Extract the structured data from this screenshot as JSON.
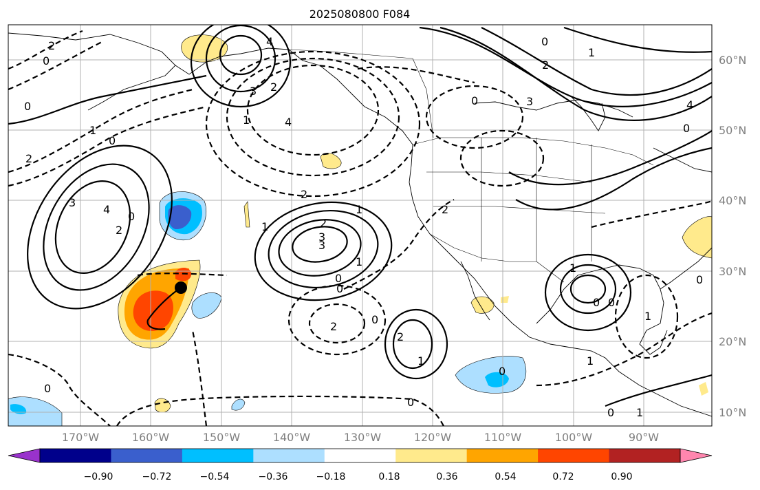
{
  "title": "2025080800 F084",
  "map": {
    "lat_labels": [
      "60°N",
      "50°N",
      "40°N",
      "30°N",
      "20°N",
      "10°N"
    ],
    "lon_labels": [
      "170°W",
      "160°W",
      "150°W",
      "140°W",
      "130°W",
      "120°W",
      "110°W",
      "100°W",
      "90°W"
    ],
    "marker": "black-dot"
  },
  "colorbar": {
    "tick_labels": [
      "−0.90",
      "−0.72",
      "−0.54",
      "−0.36",
      "−0.18",
      "0.18",
      "0.36",
      "0.54",
      "0.72",
      "0.90"
    ],
    "colors": [
      "#9932CC",
      "#00008B",
      "#3A5FCD",
      "#00BFFF",
      "#ADDFFF",
      "#FFFFFF",
      "#FFEA8C",
      "#FFA500",
      "#FF4500",
      "#B22222",
      "#FF86AE"
    ]
  },
  "contour_labels": [
    {
      "text": "3"
    },
    {
      "text": "4"
    },
    {
      "text": "2"
    },
    {
      "text": "0"
    },
    {
      "text": "3"
    },
    {
      "text": "2"
    },
    {
      "text": "4"
    },
    {
      "text": "3"
    },
    {
      "text": "1"
    },
    {
      "text": "2"
    },
    {
      "text": "0"
    },
    {
      "text": "1"
    },
    {
      "text": "2"
    },
    {
      "text": "1"
    },
    {
      "text": "0"
    },
    {
      "text": "2"
    },
    {
      "text": "0"
    },
    {
      "text": "0"
    },
    {
      "text": "2"
    },
    {
      "text": "1"
    },
    {
      "text": "0"
    },
    {
      "text": "0"
    },
    {
      "text": "2"
    },
    {
      "text": "1"
    },
    {
      "text": "0"
    },
    {
      "text": "2"
    },
    {
      "text": "3"
    },
    {
      "text": "4"
    },
    {
      "text": "2"
    },
    {
      "text": "1"
    },
    {
      "text": "0"
    },
    {
      "text": "1"
    },
    {
      "text": "0"
    },
    {
      "text": "1"
    },
    {
      "text": "0"
    },
    {
      "text": "1"
    },
    {
      "text": "0"
    },
    {
      "text": "0"
    },
    {
      "text": "1"
    },
    {
      "text": "0"
    },
    {
      "text": "3"
    },
    {
      "text": "4"
    },
    {
      "text": "1"
    },
    {
      "text": "0"
    },
    {
      "text": "2"
    },
    {
      "text": "0"
    },
    {
      "text": "0"
    }
  ]
}
